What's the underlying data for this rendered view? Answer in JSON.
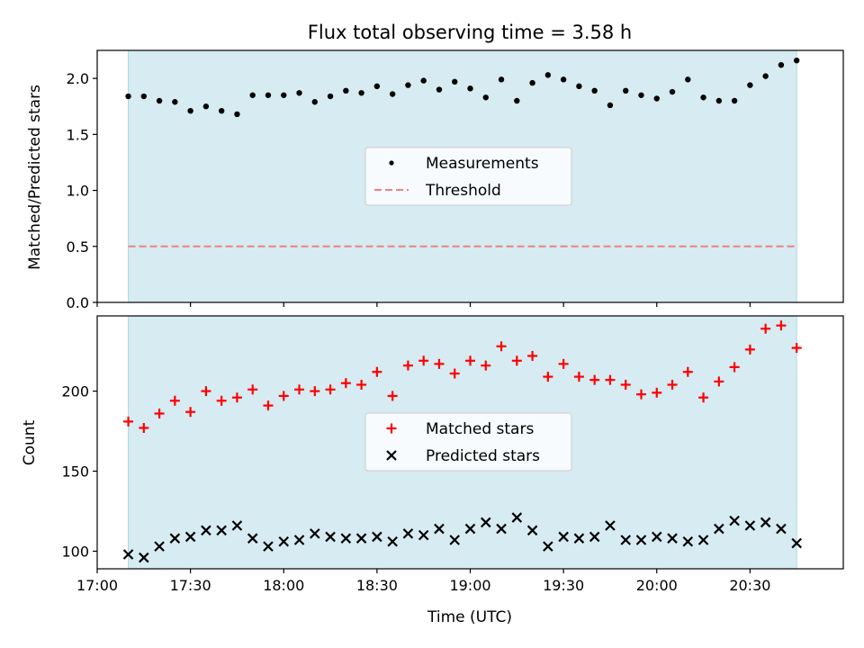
{
  "title": "Flux total observing time = 3.58 h",
  "colors": {
    "span": "#add8e6",
    "threshold": "#f08080",
    "matched": "#ff0000",
    "predicted": "#000000",
    "measurements": "#000000"
  },
  "chart_data": [
    {
      "type": "scatter",
      "ylabel": "Matched/Predicted stars",
      "ylim": [
        0,
        2.25
      ],
      "yticks": [
        "0.0",
        "0.5",
        "1.0",
        "1.5",
        "2.0"
      ],
      "legend": "center",
      "highlight_span": [
        "17:10",
        "20:45"
      ],
      "series": [
        {
          "name": "Measurements",
          "marker": "dot",
          "x": [
            "17:10",
            "17:15",
            "17:20",
            "17:25",
            "17:30",
            "17:35",
            "17:40",
            "17:45",
            "17:50",
            "17:55",
            "18:00",
            "18:05",
            "18:10",
            "18:15",
            "18:20",
            "18:25",
            "18:30",
            "18:35",
            "18:40",
            "18:45",
            "18:50",
            "18:55",
            "19:00",
            "19:05",
            "19:10",
            "19:15",
            "19:20",
            "19:25",
            "19:30",
            "19:35",
            "19:40",
            "19:45",
            "19:50",
            "19:55",
            "20:00",
            "20:05",
            "20:10",
            "20:15",
            "20:20",
            "20:25",
            "20:30",
            "20:35",
            "20:40",
            "20:45"
          ],
          "values": [
            1.84,
            1.84,
            1.8,
            1.79,
            1.71,
            1.75,
            1.71,
            1.68,
            1.85,
            1.85,
            1.85,
            1.87,
            1.79,
            1.84,
            1.89,
            1.87,
            1.93,
            1.86,
            1.94,
            1.98,
            1.9,
            1.97,
            1.91,
            1.83,
            1.99,
            1.8,
            1.96,
            2.03,
            1.99,
            1.93,
            1.89,
            1.76,
            1.89,
            1.85,
            1.82,
            1.88,
            1.99,
            1.83,
            1.8,
            1.8,
            1.94,
            2.02,
            2.12,
            2.16
          ]
        },
        {
          "name": "Threshold",
          "style": "dashed",
          "x": [
            "17:10",
            "20:45"
          ],
          "values": [
            0.5,
            0.5
          ]
        }
      ]
    },
    {
      "type": "scatter",
      "xlabel": "Time (UTC)",
      "ylabel": "Count",
      "ylim": [
        89,
        247
      ],
      "yticks": [
        "100",
        "150",
        "200"
      ],
      "xticks": [
        "17:00",
        "17:30",
        "18:00",
        "18:30",
        "19:00",
        "19:30",
        "20:00",
        "20:30"
      ],
      "xlim": [
        "17:00",
        "21:00"
      ],
      "legend": "center",
      "highlight_span": [
        "17:10",
        "20:45"
      ],
      "series": [
        {
          "name": "Matched stars",
          "marker": "plus",
          "x": [
            "17:10",
            "17:15",
            "17:20",
            "17:25",
            "17:30",
            "17:35",
            "17:40",
            "17:45",
            "17:50",
            "17:55",
            "18:00",
            "18:05",
            "18:10",
            "18:15",
            "18:20",
            "18:25",
            "18:30",
            "18:35",
            "18:40",
            "18:45",
            "18:50",
            "18:55",
            "19:00",
            "19:05",
            "19:10",
            "19:15",
            "19:20",
            "19:25",
            "19:30",
            "19:35",
            "19:40",
            "19:45",
            "19:50",
            "19:55",
            "20:00",
            "20:05",
            "20:10",
            "20:15",
            "20:20",
            "20:25",
            "20:30",
            "20:35",
            "20:40",
            "20:45"
          ],
          "values": [
            181,
            177,
            186,
            194,
            187,
            200,
            194,
            196,
            201,
            191,
            197,
            201,
            200,
            201,
            205,
            204,
            212,
            197,
            216,
            219,
            217,
            211,
            219,
            216,
            228,
            219,
            222,
            209,
            217,
            209,
            207,
            207,
            204,
            198,
            199,
            204,
            212,
            196,
            206,
            215,
            226,
            239,
            241,
            227
          ]
        },
        {
          "name": "Predicted stars",
          "marker": "x",
          "x": [
            "17:10",
            "17:15",
            "17:20",
            "17:25",
            "17:30",
            "17:35",
            "17:40",
            "17:45",
            "17:50",
            "17:55",
            "18:00",
            "18:05",
            "18:10",
            "18:15",
            "18:20",
            "18:25",
            "18:30",
            "18:35",
            "18:40",
            "18:45",
            "18:50",
            "18:55",
            "19:00",
            "19:05",
            "19:10",
            "19:15",
            "19:20",
            "19:25",
            "19:30",
            "19:35",
            "19:40",
            "19:45",
            "19:50",
            "19:55",
            "20:00",
            "20:05",
            "20:10",
            "20:15",
            "20:20",
            "20:25",
            "20:30",
            "20:35",
            "20:40",
            "20:45"
          ],
          "values": [
            98,
            96,
            103,
            108,
            109,
            113,
            113,
            116,
            108,
            103,
            106,
            107,
            111,
            109,
            108,
            108,
            109,
            106,
            111,
            110,
            114,
            107,
            114,
            118,
            114,
            121,
            113,
            103,
            109,
            108,
            109,
            116,
            107,
            107,
            109,
            108,
            106,
            107,
            114,
            119,
            116,
            118,
            114,
            105
          ]
        }
      ]
    }
  ]
}
